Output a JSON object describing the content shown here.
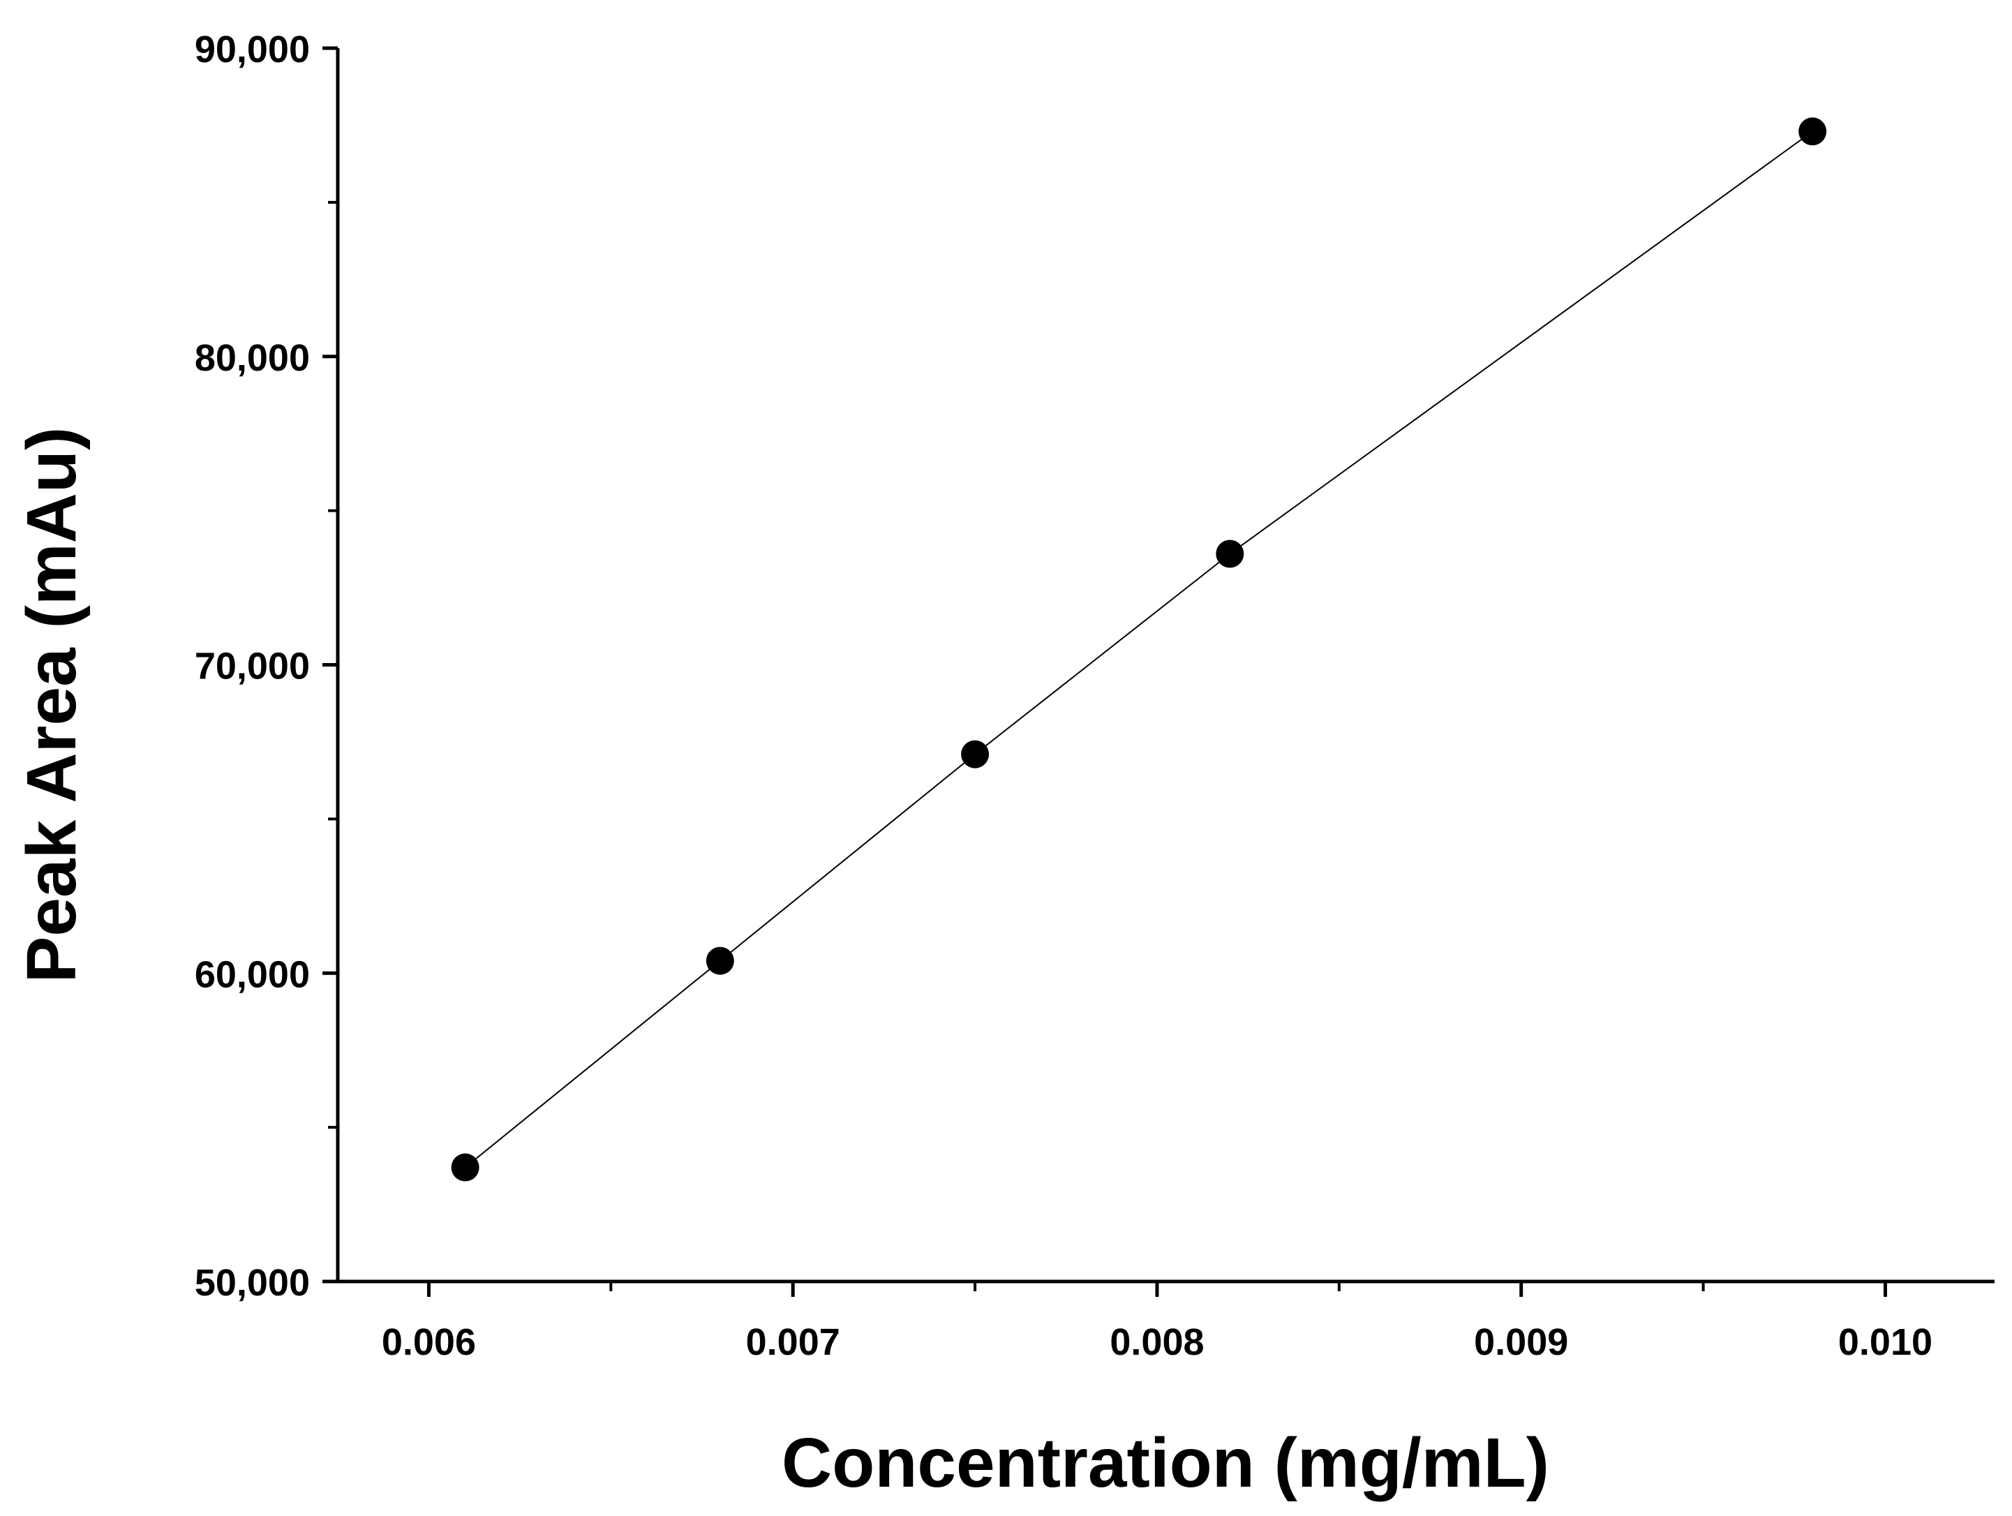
{
  "chart_data": {
    "type": "scatter",
    "title": "",
    "xlabel": "Concentration (mg/mL)",
    "ylabel": "Peak Area (mAu)",
    "xlim": [
      0.00575,
      0.0103
    ],
    "ylim": [
      50000,
      90000
    ],
    "x_ticks": [
      0.006,
      0.007,
      0.008,
      0.009,
      0.01
    ],
    "x_tick_labels": [
      "0.006",
      "0.007",
      "0.008",
      "0.009",
      "0.010"
    ],
    "x_minor_ticks": [
      0.0065,
      0.0075,
      0.0085,
      0.0095
    ],
    "y_ticks": [
      50000,
      60000,
      70000,
      80000,
      90000
    ],
    "y_tick_labels": [
      "50,000",
      "60,000",
      "70,000",
      "80,000",
      "90,000"
    ],
    "y_minor_ticks": [
      55000,
      65000,
      75000,
      85000
    ],
    "grid": false,
    "legend": "none",
    "series": [
      {
        "name": "Peak Area",
        "connect": true,
        "marker": "circle",
        "color": "#000000",
        "x": [
          0.0061,
          0.0068,
          0.0075,
          0.0082,
          0.0098
        ],
        "y": [
          53700,
          60400,
          67100,
          73600,
          87300
        ]
      }
    ]
  }
}
